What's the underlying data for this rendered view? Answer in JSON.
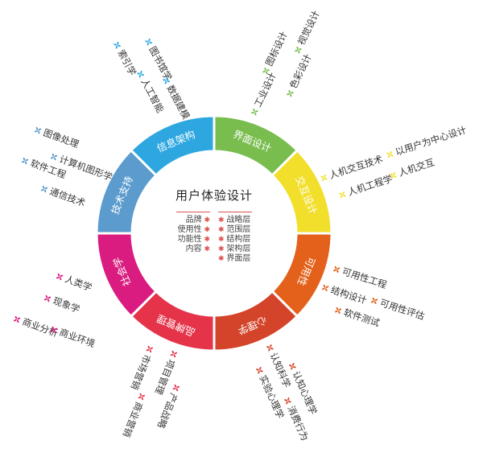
{
  "center": {
    "title": "用户体验设计",
    "left_items": [
      "品牌",
      "使用性",
      "功能性",
      "内容"
    ],
    "right_items": [
      "战略层",
      "范围层",
      "结构层",
      "架构层",
      "界面层"
    ],
    "accent_color": "#d9534f"
  },
  "segments": [
    {
      "name": "界面设计",
      "color": "#79bd4f",
      "items": [
        "工业设计",
        "图标设计",
        "色彩设计",
        "视觉设计"
      ]
    },
    {
      "name": "交互设计",
      "color": "#f2df2b",
      "items": [
        "人机交互技术",
        "人机工程学",
        "人机交互",
        "以用户为中心设计"
      ]
    },
    {
      "name": "可用性",
      "color": "#e3611a",
      "items": [
        "可用性工程",
        "结构设计",
        "可用性评估",
        "软件测试"
      ]
    },
    {
      "name": "心理学",
      "color": "#d4442b",
      "items": [
        "认知科学",
        "实验心理学",
        "认知心理学",
        "消费行为"
      ]
    },
    {
      "name": "品牌管理",
      "color": "#e5334a",
      "items": [
        "市场营销",
        "项目管理",
        "商业营销",
        "产品战略"
      ]
    },
    {
      "name": "社会学",
      "color": "#da1c80",
      "items": [
        "人类学",
        "现象学",
        "商业分析",
        "商业环境"
      ]
    },
    {
      "name": "技术支持",
      "color": "#5b9bcd",
      "items": [
        "图像处理",
        "计算机图形学",
        "软件工程",
        "通信技术"
      ]
    },
    {
      "name": "信息架构",
      "color": "#2ea7e1",
      "items": [
        "索引学",
        "图书馆学",
        "人工智能",
        "数据建模"
      ]
    }
  ],
  "icon": "pinwheel-icon"
}
